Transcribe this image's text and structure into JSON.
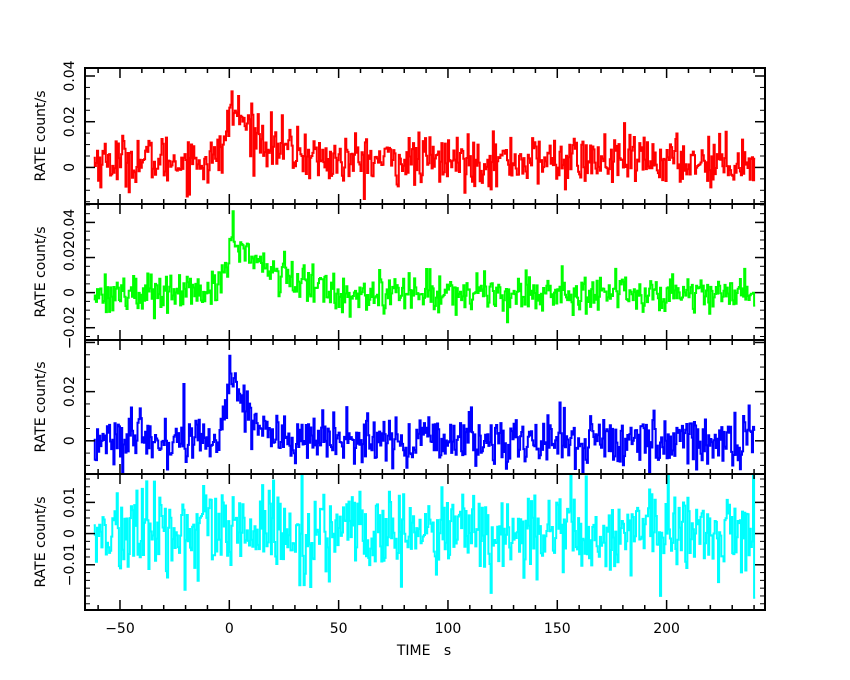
{
  "chart_data": {
    "type": "line",
    "x_axis": {
      "label": "TIME   s",
      "range": [
        -66,
        245
      ],
      "ticks": [
        -50,
        0,
        50,
        100,
        150,
        200
      ],
      "tick_labels": [
        "−50",
        "0",
        "50",
        "100",
        "150",
        "200"
      ]
    },
    "ylabel": "RATE   count/s",
    "panels": [
      {
        "color": "#ff0000",
        "ylim": [
          -0.016,
          0.0435
        ],
        "ticks": [
          0,
          0.02,
          0.04
        ],
        "tick_labels": [
          "0",
          "0.02",
          "0.04"
        ],
        "baseline": 0.003,
        "noise": 0.0055,
        "flare": {
          "amp": 0.025,
          "t0": 0,
          "t1": 40
        }
      },
      {
        "color": "#00ff00",
        "ylim": [
          -0.027,
          0.0505
        ],
        "ticks": [
          -0.02,
          0,
          0.02,
          0.04
        ],
        "tick_labels": [
          "−0.02",
          "0",
          "0.02",
          "0.04"
        ],
        "tick_label_overlap": "0.020.04",
        "baseline": 0.0,
        "noise": 0.0055,
        "flare": {
          "amp": 0.035,
          "t0": 0,
          "t1": 45
        }
      },
      {
        "color": "#0000ff",
        "ylim": [
          -0.0135,
          0.041
        ],
        "ticks": [
          0,
          0.02,
          0.04
        ],
        "tick_labels": [
          "0",
          "0.02",
          "−"
        ],
        "baseline": 0.0,
        "noise": 0.0052,
        "flare": {
          "amp": 0.032,
          "t0": 0,
          "t1": 22
        }
      },
      {
        "color": "#00ffff",
        "ylim": [
          -0.0245,
          0.0191
        ],
        "ticks": [
          -0.01,
          0,
          0.01
        ],
        "tick_labels": [
          "−0.01",
          "0",
          "0.01"
        ],
        "baseline": 0.0,
        "noise": 0.007,
        "flare": {
          "amp": 0.0,
          "t0": 0,
          "t1": 0
        }
      }
    ],
    "series_time_range": [
      -62,
      240
    ],
    "bin_width_s": 0.5,
    "grid": false,
    "legend": "none"
  }
}
